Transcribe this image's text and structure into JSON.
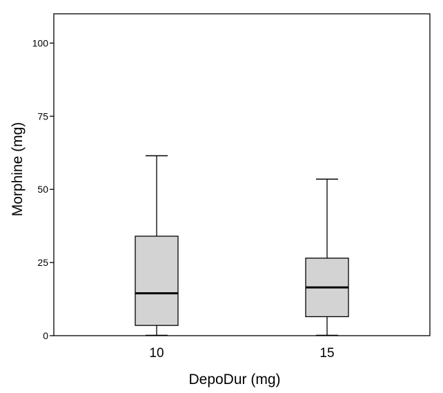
{
  "chart_data": {
    "type": "boxplot",
    "xlabel": "DepoDur (mg)",
    "ylabel": "Morphine (mg)",
    "ylim": [
      0,
      110
    ],
    "yticks": [
      0,
      25,
      50,
      75,
      100
    ],
    "ytick_labels": [
      "0",
      "25",
      "50",
      "75",
      "100"
    ],
    "categories": [
      "10",
      "15"
    ],
    "boxes": [
      {
        "category": "10",
        "min": 0,
        "q1": 3.5,
        "median": 14.5,
        "q3": 34,
        "max": 61.5
      },
      {
        "category": "15",
        "min": 0,
        "q1": 6.5,
        "median": 16.5,
        "q3": 26.5,
        "max": 53.5
      }
    ],
    "box_color": "#d3d3d3",
    "grid": false
  }
}
